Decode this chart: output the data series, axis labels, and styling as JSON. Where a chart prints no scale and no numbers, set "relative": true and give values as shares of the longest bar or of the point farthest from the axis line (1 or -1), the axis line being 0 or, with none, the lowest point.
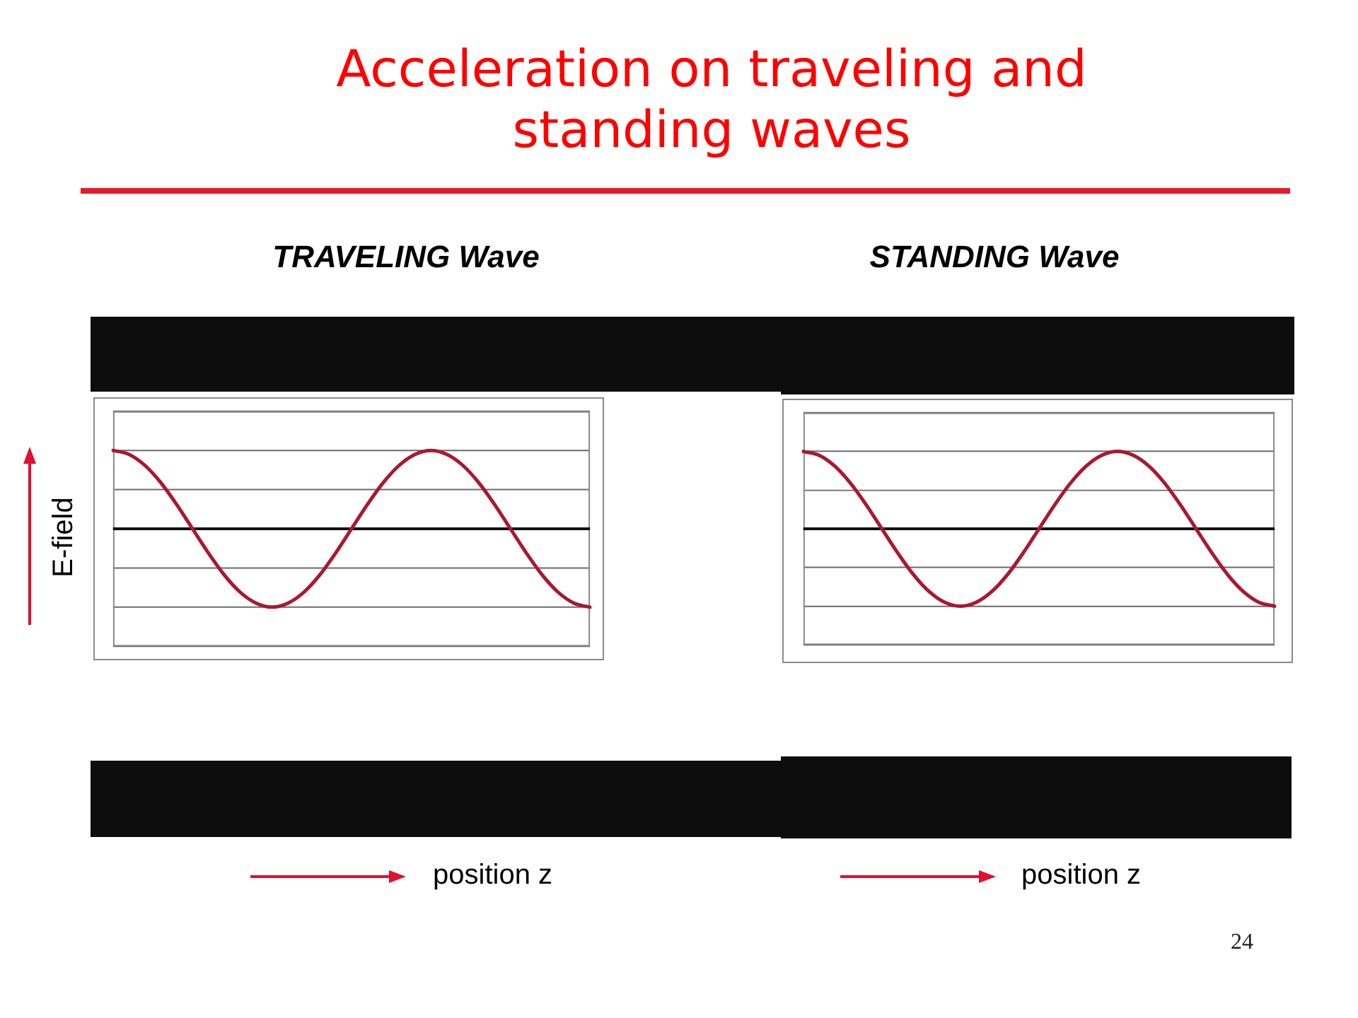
{
  "chart_data": [
    {
      "type": "line",
      "title": "Acceleration on traveling and standing waves",
      "subtitle": "TRAVELING Wave",
      "xlabel": "position z",
      "ylabel": "E-field",
      "categories": [
        null,
        null,
        null,
        null,
        null,
        null,
        null,
        null,
        null,
        null,
        null,
        null,
        null,
        null,
        null,
        null,
        null,
        null,
        null,
        null,
        null,
        null,
        null,
        null,
        null,
        null,
        null,
        null,
        null,
        null,
        null
      ],
      "values": [
        1,
        0.95,
        0.81,
        0.59,
        0.31,
        0,
        -0.31,
        -0.59,
        -0.81,
        -0.95,
        -1,
        -0.95,
        -0.81,
        -0.59,
        -0.31,
        0,
        0.31,
        0.59,
        0.81,
        0.95,
        1,
        0.95,
        0.81,
        0.59,
        0.31,
        0,
        -0.31,
        -0.59,
        -0.81,
        -0.95,
        -1
      ],
      "color": "#aa1830",
      "relative": true,
      "grid": "y"
    },
    {
      "type": "line",
      "subtitle": "STANDING Wave",
      "xlabel": "position z",
      "categories": [
        null,
        null,
        null,
        null,
        null,
        null,
        null,
        null,
        null,
        null,
        null,
        null,
        null,
        null,
        null,
        null,
        null,
        null,
        null,
        null,
        null,
        null,
        null,
        null,
        null,
        null,
        null,
        null,
        null,
        null,
        null
      ],
      "values": [
        1,
        0.95,
        0.81,
        0.59,
        0.31,
        0,
        -0.31,
        -0.59,
        -0.81,
        -0.95,
        -1,
        -0.95,
        -0.81,
        -0.59,
        -0.31,
        0,
        0.31,
        0.59,
        0.81,
        0.95,
        1,
        0.95,
        0.81,
        0.59,
        0.31,
        0,
        -0.31,
        -0.59,
        -0.81,
        -0.95,
        -1
      ],
      "color": "#aa1830",
      "relative": true,
      "grid": "y",
      "annotations": [
        "24"
      ]
    }
  ]
}
